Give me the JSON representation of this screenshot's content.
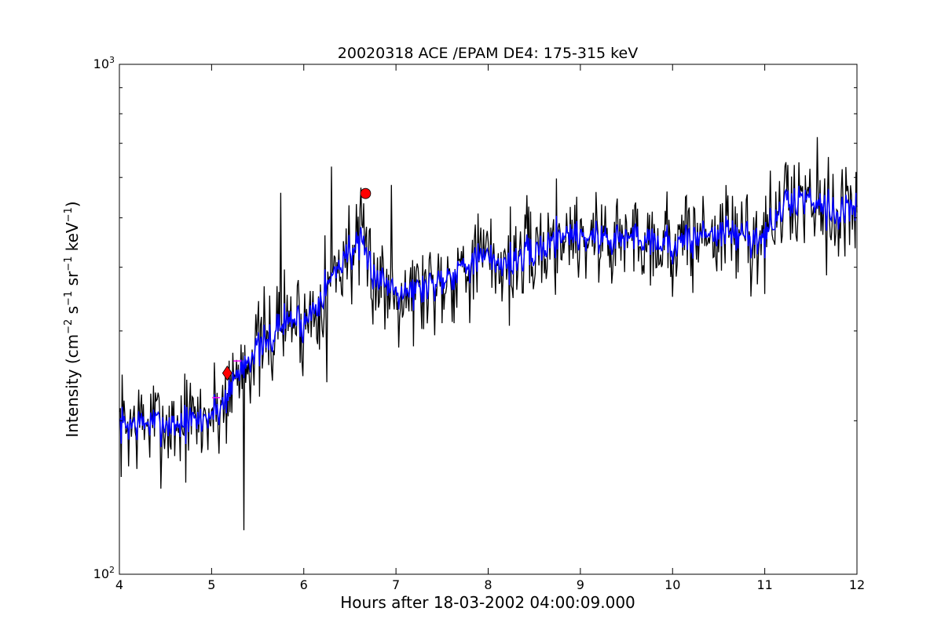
{
  "chart_data": {
    "type": "line",
    "title": "20020318 ACE /EPAM DE4: 175-315 keV",
    "xlabel": "Hours after 18-03-2002 04:00:09.000",
    "ylabel": {
      "prefix": "Intensity (cm",
      "exp1": "−2",
      "mid1": " s",
      "exp2": "−1",
      "mid2": " sr",
      "exp3": "−1",
      "mid3": " keV",
      "exp4": "−1",
      "suffix": ")"
    },
    "xlim": [
      4,
      12
    ],
    "ylim": [
      100,
      1000
    ],
    "yscale": "log",
    "x_ticks": [
      "4",
      "5",
      "6",
      "7",
      "8",
      "9",
      "10",
      "11",
      "12"
    ],
    "y_ticks": [
      {
        "base": "10",
        "exp": "2",
        "value": 100
      },
      {
        "base": "10",
        "exp": "3",
        "value": 1000
      }
    ],
    "envelope": [
      [
        4.0,
        196
      ],
      [
        4.3,
        198
      ],
      [
        4.6,
        197
      ],
      [
        4.9,
        201
      ],
      [
        5.1,
        212
      ],
      [
        5.25,
        242
      ],
      [
        5.4,
        268
      ],
      [
        5.6,
        282
      ],
      [
        5.75,
        310
      ],
      [
        5.9,
        318
      ],
      [
        6.0,
        308
      ],
      [
        6.15,
        345
      ],
      [
        6.3,
        380
      ],
      [
        6.45,
        425
      ],
      [
        6.6,
        440
      ],
      [
        6.7,
        410
      ],
      [
        6.8,
        382
      ],
      [
        7.0,
        365
      ],
      [
        7.2,
        360
      ],
      [
        7.4,
        372
      ],
      [
        7.6,
        390
      ],
      [
        7.8,
        412
      ],
      [
        8.0,
        415
      ],
      [
        8.2,
        408
      ],
      [
        8.4,
        418
      ],
      [
        8.6,
        438
      ],
      [
        8.8,
        468
      ],
      [
        9.0,
        462
      ],
      [
        9.2,
        458
      ],
      [
        9.4,
        454
      ],
      [
        9.6,
        460
      ],
      [
        9.8,
        456
      ],
      [
        10.0,
        440
      ],
      [
        10.2,
        452
      ],
      [
        10.4,
        470
      ],
      [
        10.6,
        466
      ],
      [
        10.8,
        460
      ],
      [
        11.0,
        456
      ],
      [
        11.2,
        525
      ],
      [
        11.4,
        548
      ],
      [
        11.6,
        540
      ],
      [
        11.8,
        508
      ],
      [
        12.0,
        532
      ]
    ],
    "spikes": [
      [
        5.35,
        122
      ],
      [
        5.75,
        560
      ],
      [
        6.25,
        238
      ],
      [
        6.3,
        630
      ],
      [
        6.88,
        302
      ],
      [
        6.95,
        580
      ],
      [
        11.57,
        720
      ],
      [
        11.87,
        420
      ]
    ],
    "series": [
      {
        "kind": "raw",
        "color": "#000000",
        "seed": 7,
        "amp": 0.05,
        "step": 0.01
      },
      {
        "kind": "smoothed",
        "color": "#0000ff",
        "seed": 7,
        "amp": 0.018,
        "step": 0.01
      }
    ],
    "markers": [
      {
        "shape": "diamond",
        "x": 5.17,
        "y": 248,
        "color": "#ff0000"
      },
      {
        "shape": "circle",
        "x": 6.67,
        "y": 558,
        "color": "#ff0000"
      },
      {
        "shape": "tick",
        "x": 5.28,
        "y": 262,
        "color": "#ff00ff"
      },
      {
        "shape": "tick",
        "x": 5.05,
        "y": 222,
        "color": "#ff00ff"
      }
    ],
    "grid": false,
    "legend": "none"
  }
}
